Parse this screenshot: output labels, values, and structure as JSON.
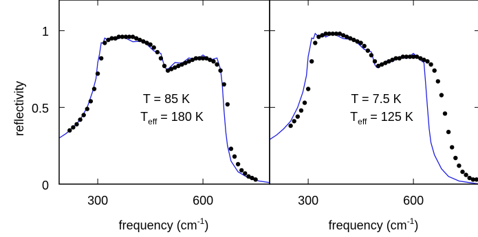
{
  "figure": {
    "ylabel": "reflectivity",
    "y_tick_labels": [
      "0",
      "0.5",
      "1"
    ],
    "colors": {
      "model_line": "#1f1fe0",
      "data_dots": "#000000",
      "frame": "#000000"
    }
  },
  "chart_data": [
    {
      "type": "line",
      "xlabel": "frequency (cm-1)",
      "xlabel_base": "frequency (cm",
      "xlabel_sup": "-1",
      "xlabel_close": ")",
      "ylabel": "reflectivity",
      "xlim": [
        190,
        790
      ],
      "ylim": [
        0,
        1.2
      ],
      "x_ticks": [
        300,
        600
      ],
      "y_ticks": [
        0,
        0.5,
        1
      ],
      "annotation_line1": "T = 85 K",
      "annotation_line2_base": "T",
      "annotation_line2_sub": "eff",
      "annotation_line2_rest": " = 180 K",
      "series": [
        {
          "style": "line",
          "color": "#1f1fe0",
          "x": [
            190,
            210,
            230,
            250,
            270,
            285,
            295,
            300,
            305,
            310,
            315,
            320,
            330,
            340,
            350,
            370,
            400,
            430,
            460,
            480,
            490,
            495,
            500,
            520,
            540,
            560,
            580,
            600,
            620,
            640,
            650,
            655,
            660,
            665,
            670,
            680,
            700,
            730,
            760,
            790
          ],
          "y": [
            0.3,
            0.33,
            0.37,
            0.42,
            0.5,
            0.6,
            0.7,
            0.78,
            0.86,
            0.91,
            0.93,
            0.94,
            0.95,
            0.95,
            0.95,
            0.95,
            0.94,
            0.92,
            0.88,
            0.84,
            0.78,
            0.74,
            0.76,
            0.78,
            0.8,
            0.81,
            0.82,
            0.83,
            0.82,
            0.81,
            0.76,
            0.64,
            0.48,
            0.34,
            0.25,
            0.15,
            0.08,
            0.04,
            0.02,
            0.01
          ]
        },
        {
          "style": "scatter",
          "color": "#000000",
          "x": [
            220,
            230,
            240,
            250,
            260,
            270,
            280,
            290,
            300,
            310,
            320,
            330,
            340,
            350,
            360,
            370,
            380,
            390,
            400,
            410,
            420,
            430,
            440,
            450,
            460,
            470,
            480,
            490,
            500,
            510,
            520,
            530,
            540,
            550,
            560,
            570,
            580,
            590,
            600,
            610,
            620,
            630,
            640,
            650,
            660,
            670,
            680,
            690,
            700,
            710,
            720,
            730,
            740,
            750
          ],
          "y": [
            0.35,
            0.37,
            0.39,
            0.42,
            0.45,
            0.49,
            0.54,
            0.62,
            0.72,
            0.82,
            0.92,
            0.94,
            0.95,
            0.95,
            0.96,
            0.96,
            0.96,
            0.96,
            0.96,
            0.95,
            0.94,
            0.93,
            0.92,
            0.91,
            0.89,
            0.86,
            0.82,
            0.77,
            0.74,
            0.75,
            0.76,
            0.77,
            0.78,
            0.79,
            0.8,
            0.81,
            0.82,
            0.82,
            0.82,
            0.82,
            0.81,
            0.8,
            0.78,
            0.74,
            0.65,
            0.52,
            0.23,
            0.18,
            0.13,
            0.09,
            0.07,
            0.05,
            0.04,
            0.03
          ]
        }
      ]
    },
    {
      "type": "line",
      "xlabel": "frequency (cm-1)",
      "xlabel_base": "frequency (cm",
      "xlabel_sup": "-1",
      "xlabel_close": ")",
      "xlim": [
        190,
        790
      ],
      "ylim": [
        0,
        1.2
      ],
      "x_ticks": [
        300,
        600
      ],
      "y_ticks": [
        0,
        0.5,
        1
      ],
      "annotation_line1": "T =  7.5 K",
      "annotation_line2_base": "T",
      "annotation_line2_sub": "eff",
      "annotation_line2_rest": " = 125 K",
      "series": [
        {
          "style": "line",
          "color": "#1f1fe0",
          "x": [
            190,
            210,
            230,
            250,
            270,
            285,
            295,
            300,
            305,
            310,
            315,
            320,
            330,
            340,
            350,
            370,
            400,
            430,
            460,
            480,
            490,
            495,
            500,
            520,
            540,
            560,
            580,
            600,
            620,
            630,
            635,
            640,
            645,
            650,
            660,
            680,
            700,
            730,
            760,
            790
          ],
          "y": [
            0.29,
            0.32,
            0.36,
            0.41,
            0.5,
            0.6,
            0.72,
            0.82,
            0.9,
            0.94,
            0.96,
            0.97,
            0.97,
            0.97,
            0.97,
            0.97,
            0.96,
            0.93,
            0.89,
            0.85,
            0.79,
            0.75,
            0.77,
            0.79,
            0.81,
            0.82,
            0.83,
            0.84,
            0.82,
            0.78,
            0.66,
            0.5,
            0.36,
            0.27,
            0.19,
            0.1,
            0.05,
            0.02,
            0.01,
            0.0
          ]
        },
        {
          "style": "scatter",
          "color": "#000000",
          "x": [
            250,
            260,
            270,
            280,
            290,
            300,
            310,
            320,
            330,
            340,
            350,
            360,
            370,
            380,
            390,
            400,
            410,
            420,
            430,
            440,
            450,
            460,
            470,
            480,
            490,
            500,
            510,
            520,
            530,
            540,
            550,
            560,
            570,
            580,
            590,
            600,
            610,
            620,
            630,
            640,
            650,
            660,
            670,
            680,
            690,
            700,
            710,
            720,
            730,
            740,
            750,
            760,
            770,
            780
          ],
          "y": [
            0.38,
            0.41,
            0.44,
            0.48,
            0.53,
            0.62,
            0.8,
            0.92,
            0.96,
            0.97,
            0.98,
            0.98,
            0.98,
            0.98,
            0.98,
            0.97,
            0.96,
            0.95,
            0.94,
            0.93,
            0.92,
            0.9,
            0.87,
            0.84,
            0.8,
            0.77,
            0.78,
            0.79,
            0.8,
            0.81,
            0.82,
            0.82,
            0.83,
            0.83,
            0.83,
            0.83,
            0.83,
            0.82,
            0.81,
            0.8,
            0.78,
            0.74,
            0.67,
            0.58,
            0.46,
            0.34,
            0.24,
            0.17,
            0.12,
            0.08,
            0.06,
            0.04,
            0.03,
            0.03
          ]
        }
      ]
    }
  ]
}
